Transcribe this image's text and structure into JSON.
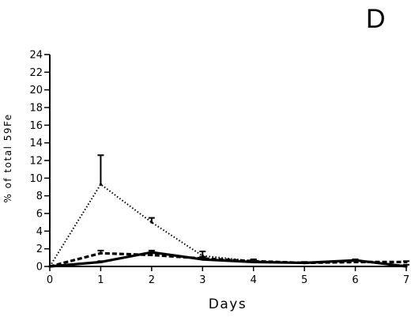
{
  "panel_label": "D",
  "chart_data": {
    "type": "line",
    "title": "",
    "xlabel": "Days",
    "ylabel": "% of total 59Fe",
    "xlim": [
      0,
      7
    ],
    "ylim": [
      0,
      24
    ],
    "x_ticks": [
      0,
      1,
      2,
      3,
      4,
      5,
      6,
      7
    ],
    "y_ticks": [
      0,
      2,
      4,
      6,
      8,
      10,
      12,
      14,
      16,
      18,
      20,
      22,
      24
    ],
    "grid": false,
    "legend": "none",
    "series": [
      {
        "style": "dotted",
        "x": [
          0,
          1,
          2,
          3,
          4,
          5,
          6,
          7
        ],
        "y": [
          0,
          9.3,
          5.0,
          1.2,
          0.6,
          0.4,
          0.6,
          0.1
        ],
        "error_upper": [
          0,
          3.3,
          0.5,
          0.5,
          0.2,
          0.1,
          0.2,
          0.1
        ]
      },
      {
        "style": "dashed",
        "x": [
          0,
          1,
          2,
          3,
          4,
          5,
          6,
          7
        ],
        "y": [
          0,
          1.5,
          1.3,
          0.9,
          0.6,
          0.4,
          0.5,
          0.5
        ],
        "error_upper": [
          0,
          0.3,
          0.2,
          0.2,
          0.1,
          0.1,
          0.1,
          0.1
        ]
      },
      {
        "style": "solid",
        "x": [
          0,
          1,
          2,
          3,
          4,
          5,
          6,
          7
        ],
        "y": [
          0,
          0.5,
          1.6,
          0.8,
          0.5,
          0.4,
          0.7,
          0.0
        ],
        "error_upper": [
          0,
          0.1,
          0.2,
          0.2,
          0.3,
          0.1,
          0.1,
          0.0
        ]
      }
    ]
  }
}
